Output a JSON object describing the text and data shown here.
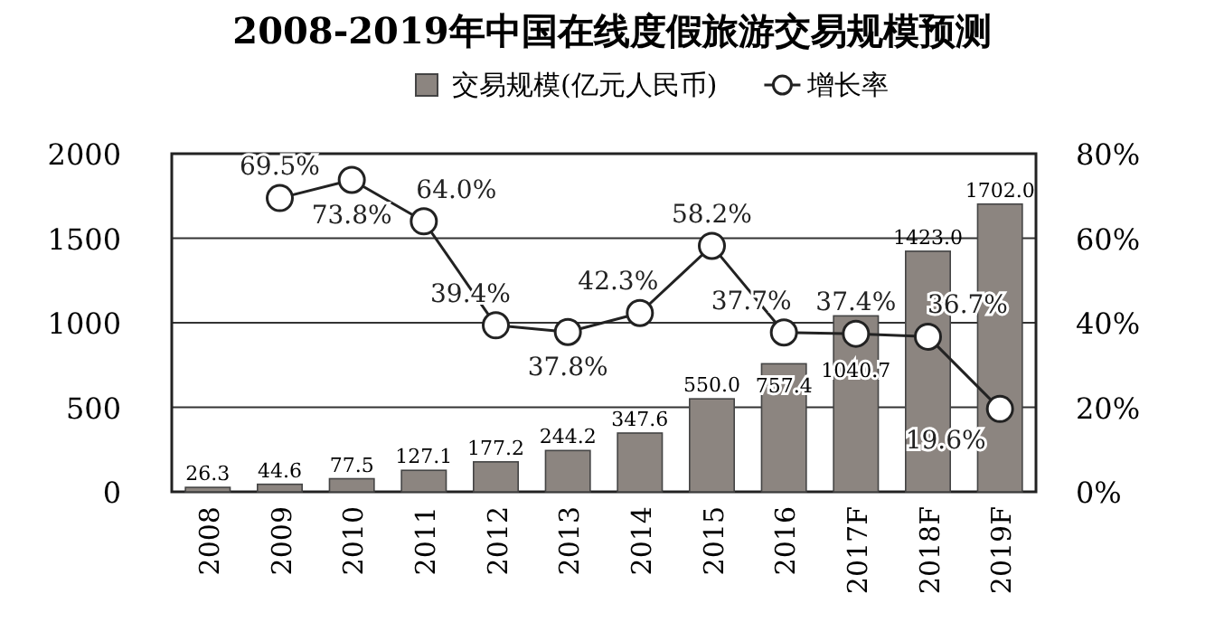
{
  "chart_data": {
    "type": "bar",
    "title": "2008-2019年中国在线度假旅游交易规模预测",
    "categories": [
      "2008",
      "2009",
      "2010",
      "2011",
      "2012",
      "2013",
      "2014",
      "2015",
      "2016",
      "2017F",
      "2018F",
      "2019F"
    ],
    "series": [
      {
        "name": "交易规模(亿元人民币)",
        "color": "#8c8580",
        "values": [
          26.3,
          44.6,
          77.5,
          127.1,
          177.2,
          244.2,
          347.6,
          550.0,
          757.4,
          1040.7,
          1423.0,
          1702.0
        ],
        "value_labels": [
          "26.3",
          "44.6",
          "77.5",
          "127.1",
          "177.2",
          "244.2",
          "347.6",
          "550.0",
          "757.4",
          "1040.7",
          "1423.0",
          "1702.0"
        ]
      },
      {
        "name": "增长率",
        "type": "line",
        "axis": "y2",
        "color": "#222222",
        "marker": "circle",
        "values": [
          null,
          69.5,
          73.8,
          64.0,
          39.4,
          37.8,
          42.3,
          58.2,
          37.7,
          37.4,
          36.7,
          19.6
        ],
        "value_labels": [
          null,
          "69.5%",
          "73.8%",
          "64.0%",
          "39.4%",
          "37.8%",
          "42.3%",
          "58.2%",
          "37.7%",
          "37.4%",
          "36.7%",
          "19.6%"
        ]
      }
    ],
    "ylim": [
      0,
      2000
    ],
    "yticks": [
      0,
      500,
      1000,
      1500,
      2000
    ],
    "y2lim": [
      0,
      80
    ],
    "y2ticks": [
      {
        "value": 0,
        "label": "0%"
      },
      {
        "value": 20,
        "label": "20%"
      },
      {
        "value": 40,
        "label": "40%"
      },
      {
        "value": 60,
        "label": "60%"
      },
      {
        "value": 80,
        "label": "80%"
      }
    ],
    "grid": "y",
    "legend": "top"
  }
}
